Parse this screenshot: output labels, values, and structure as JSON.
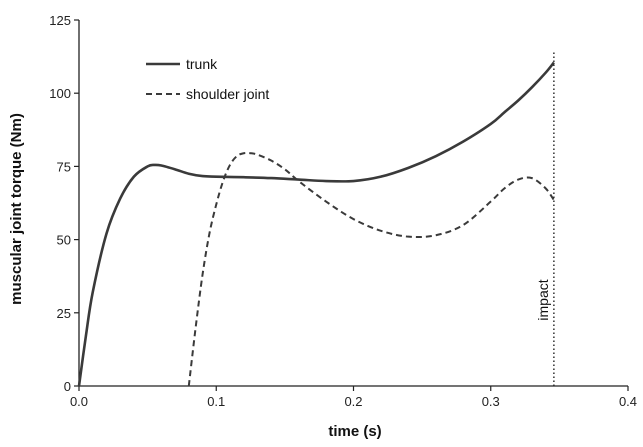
{
  "chart_data": {
    "type": "line",
    "title": "",
    "xlabel": "time (s)",
    "ylabel": "muscular joint torque (Nm)",
    "xlim": [
      0,
      0.4
    ],
    "ylim": [
      0,
      125
    ],
    "xticks": [
      0.0,
      0.1,
      0.2,
      0.3,
      0.4
    ],
    "xtick_labels": [
      "0.0",
      "0.1",
      "0.2",
      "0.3",
      "0.4"
    ],
    "yticks": [
      0,
      25,
      50,
      75,
      100,
      125
    ],
    "ytick_labels": [
      "0",
      "25",
      "50",
      "75",
      "100",
      "125"
    ],
    "grid": false,
    "legend_position": "top-left",
    "series": [
      {
        "name": "trunk",
        "style": "solid",
        "x": [
          0.0,
          0.005,
          0.01,
          0.02,
          0.03,
          0.04,
          0.05,
          0.055,
          0.06,
          0.07,
          0.08,
          0.09,
          0.1,
          0.12,
          0.14,
          0.16,
          0.18,
          0.2,
          0.22,
          0.24,
          0.26,
          0.28,
          0.3,
          0.31,
          0.32,
          0.33,
          0.34,
          0.346
        ],
        "y": [
          0,
          17,
          32,
          52,
          64,
          71.5,
          75,
          75.5,
          75.3,
          74,
          72.5,
          71.7,
          71.5,
          71.3,
          71,
          70.5,
          70,
          70,
          71.5,
          74.5,
          78.5,
          83.5,
          89.5,
          93.5,
          97.5,
          102,
          107,
          110.5
        ]
      },
      {
        "name": "shoulder joint",
        "style": "dashed",
        "x": [
          0.08,
          0.085,
          0.09,
          0.095,
          0.1,
          0.105,
          0.11,
          0.115,
          0.12,
          0.125,
          0.13,
          0.14,
          0.15,
          0.16,
          0.18,
          0.2,
          0.22,
          0.24,
          0.26,
          0.28,
          0.3,
          0.31,
          0.32,
          0.33,
          0.34,
          0.346
        ],
        "y": [
          0,
          20,
          38,
          52,
          62,
          70,
          75.5,
          78.5,
          79.5,
          79.5,
          79,
          77,
          74,
          70,
          63,
          57,
          53,
          51,
          51.5,
          55,
          63,
          67.5,
          70.5,
          71,
          67.5,
          63.5
        ]
      }
    ],
    "annotations": [
      {
        "type": "vline",
        "style": "dotted",
        "x": 0.346,
        "label": "impact"
      }
    ]
  },
  "colors": {
    "line": "#3a3a3a",
    "axis": "#222222",
    "text": "#111111",
    "background": "#ffffff"
  }
}
